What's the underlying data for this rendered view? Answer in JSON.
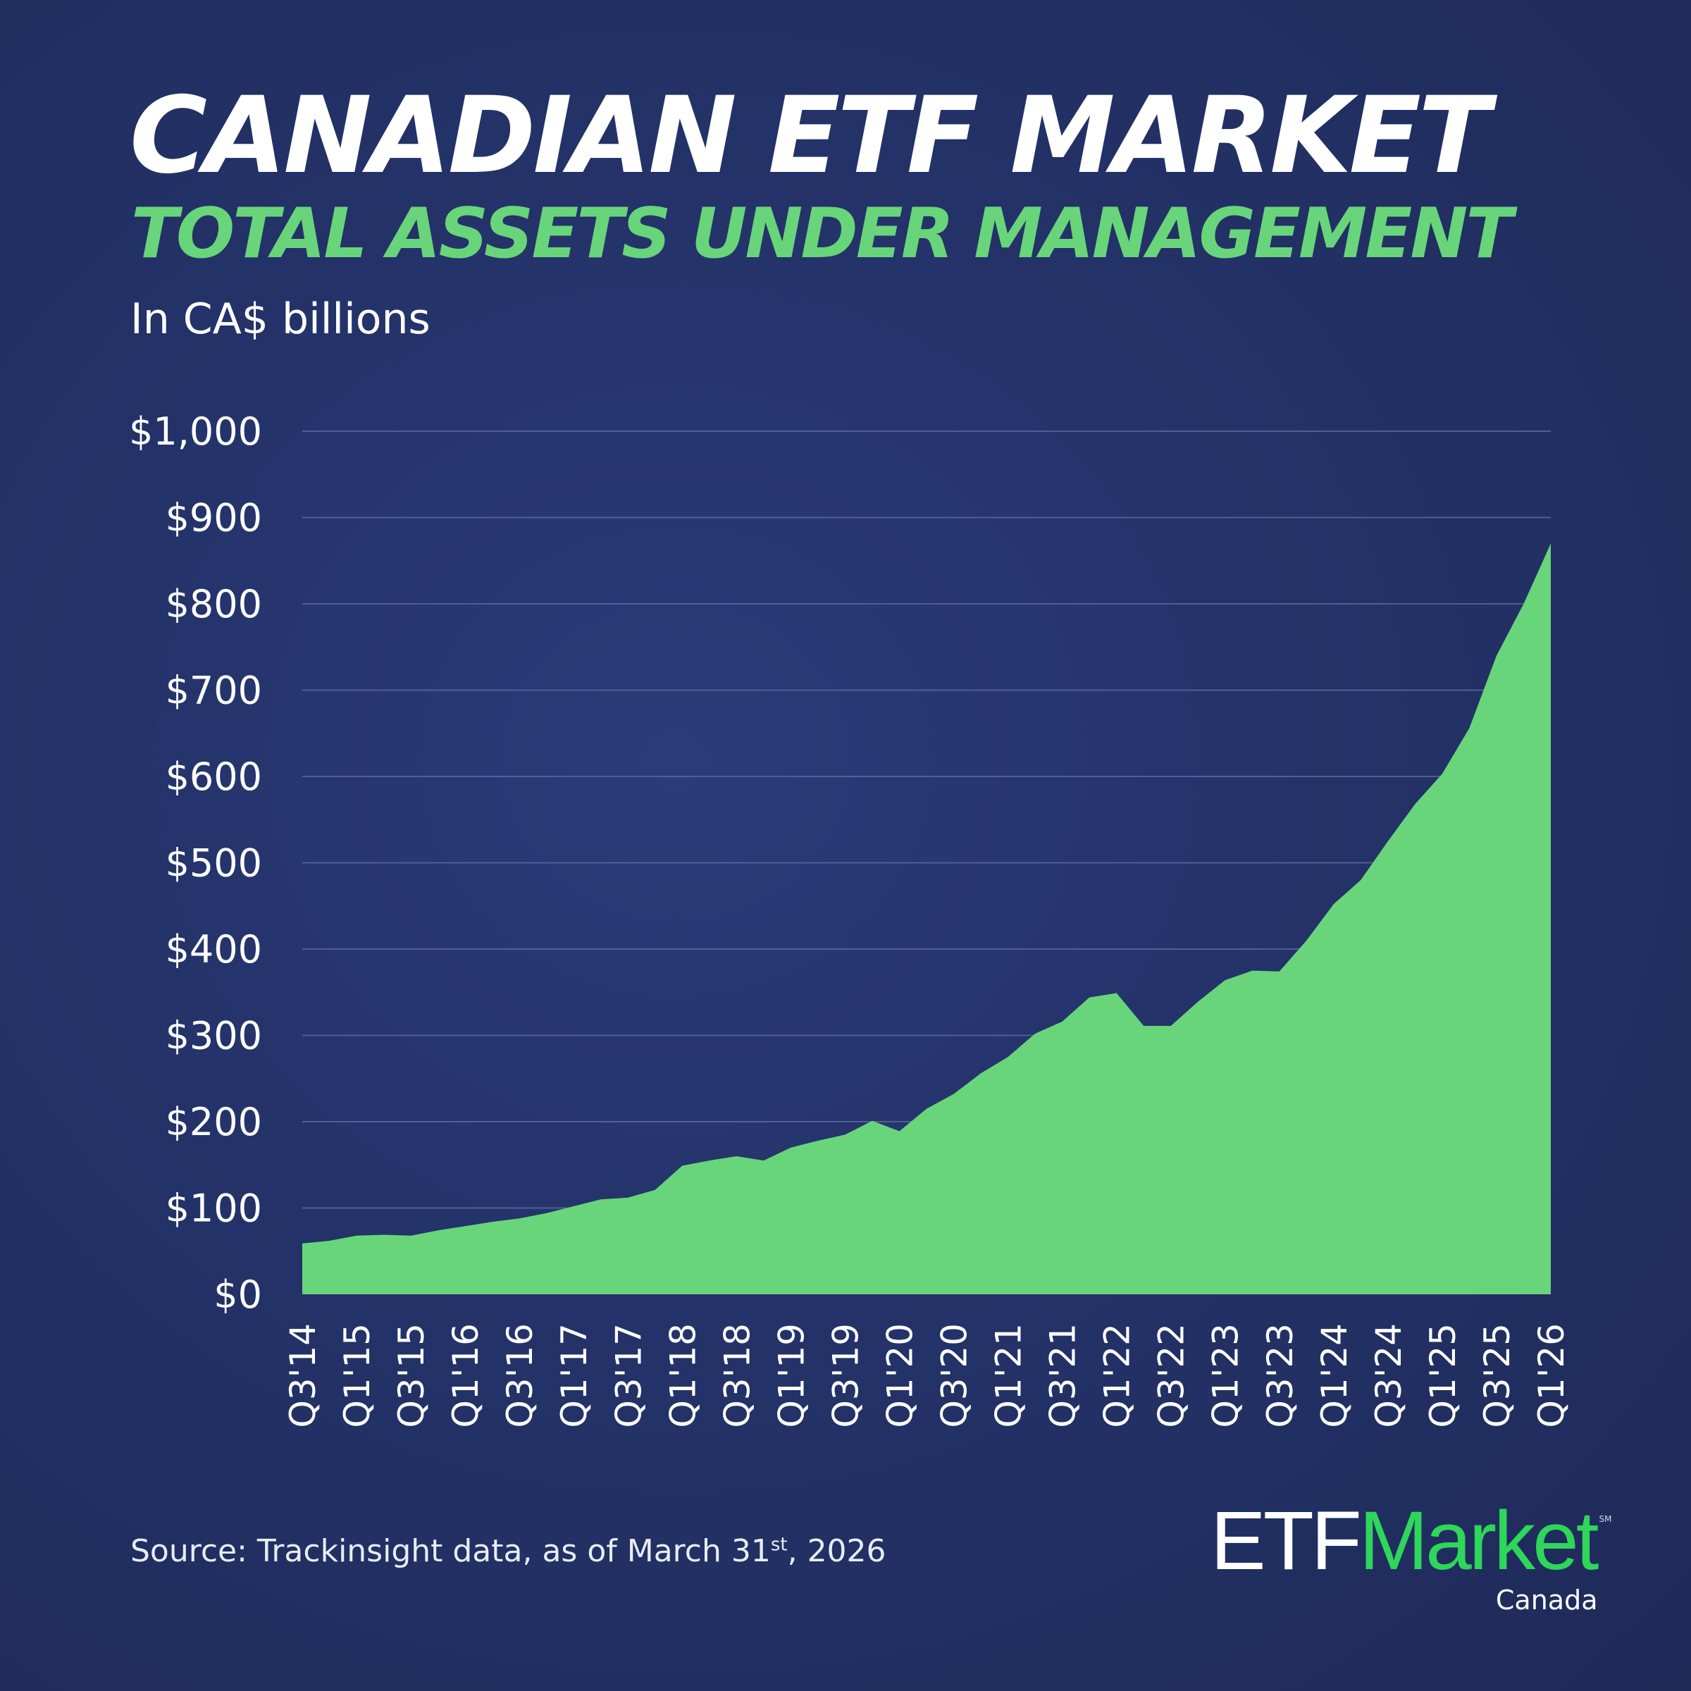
{
  "header": {
    "title": "CANADIAN ETF MARKET",
    "subtitle": "TOTAL ASSETS UNDER MANAGEMENT",
    "unit": "In CA$ billions"
  },
  "footer": {
    "source_prefix": "Source: Trackinsight data, as of March 31",
    "source_sup": "st",
    "source_suffix": ", 2026"
  },
  "logo": {
    "etf": "ETF",
    "market": "Market",
    "sm": "SM",
    "canada": "Canada"
  },
  "colors": {
    "area": "#68d57a",
    "logo_green": "#2ed65a",
    "background": "#24336a",
    "grid": "#5a6a9e"
  },
  "chart_data": {
    "type": "area",
    "title": "TOTAL ASSETS UNDER MANAGEMENT",
    "ylabel": "In CA$ billions",
    "xlabel": "",
    "ylim": [
      0,
      1000
    ],
    "y_ticks": [
      0,
      100,
      200,
      300,
      400,
      500,
      600,
      700,
      800,
      900,
      1000
    ],
    "y_tick_labels": [
      "$0",
      "$100",
      "$200",
      "$300",
      "$400",
      "$500",
      "$600",
      "$700",
      "$800",
      "$900",
      "$1,000"
    ],
    "grid": true,
    "categories": [
      "Q3'14",
      "Q4'14",
      "Q1'15",
      "Q2'15",
      "Q3'15",
      "Q4'15",
      "Q1'16",
      "Q2'16",
      "Q3'16",
      "Q4'16",
      "Q1'17",
      "Q2'17",
      "Q3'17",
      "Q4'17",
      "Q1'18",
      "Q2'18",
      "Q3'18",
      "Q4'18",
      "Q1'19",
      "Q2'19",
      "Q3'19",
      "Q4'19",
      "Q1'20",
      "Q2'20",
      "Q3'20",
      "Q4'20",
      "Q1'21",
      "Q2'21",
      "Q3'21",
      "Q4'21",
      "Q1'22",
      "Q2'22",
      "Q3'22",
      "Q4'22",
      "Q1'23",
      "Q2'23",
      "Q3'23",
      "Q4'23",
      "Q1'24",
      "Q2'24",
      "Q3'24",
      "Q4'24",
      "Q1'25",
      "Q2'25",
      "Q3'25",
      "Q4'25",
      "Q1'26"
    ],
    "x_tick_labels": [
      "Q3'14",
      "Q1'15",
      "Q3'15",
      "Q1'16",
      "Q3'16",
      "Q1'17",
      "Q3'17",
      "Q1'18",
      "Q3'18",
      "Q1'19",
      "Q3'19",
      "Q1'20",
      "Q3'20",
      "Q1'21",
      "Q3'21",
      "Q1'22",
      "Q3'22",
      "Q1'23",
      "Q3'23",
      "Q1'24",
      "Q3'24",
      "Q1'25",
      "Q3'25",
      "Q1'26"
    ],
    "values": [
      59,
      62,
      68,
      69,
      68,
      74,
      79,
      84,
      88,
      94,
      102,
      110,
      112,
      121,
      149,
      155,
      160,
      155,
      170,
      178,
      185,
      201,
      189,
      215,
      232,
      256,
      275,
      302,
      316,
      344,
      349,
      311,
      311,
      339,
      364,
      375,
      374,
      410,
      452,
      480,
      525,
      568,
      603,
      656,
      740,
      800,
      870
    ]
  }
}
